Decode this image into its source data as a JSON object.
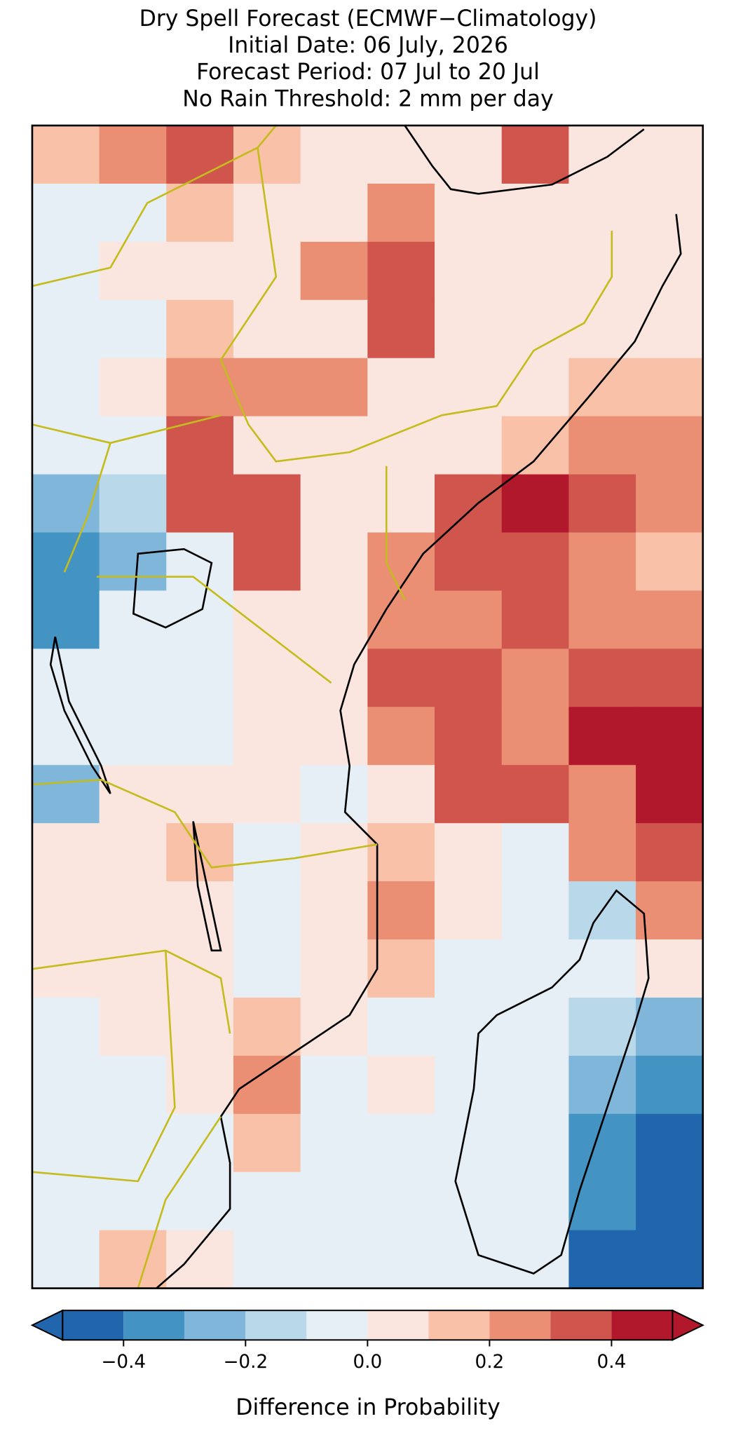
{
  "map": {
    "title": [
      "Dry Spell Forecast (ECMWF−Climatology)",
      "Initial Date: 06 July, 2026",
      "Forecast Period: 07 Jul to 20 Jul",
      "No Rain Threshold: 2 mm per day"
    ],
    "grid": [
      [
        0.1,
        0.2,
        0.3,
        0.1,
        0.05,
        0.05,
        0.05,
        0.3,
        0.05,
        0.05
      ],
      [
        -0.1,
        -0.1,
        0.1,
        0.05,
        0.05,
        0.2,
        0.05,
        0.05,
        0.05,
        0.05
      ],
      [
        -0.05,
        0.05,
        0.05,
        0.05,
        0.2,
        0.3,
        0.05,
        0.05,
        0.05,
        0.05
      ],
      [
        -0.05,
        -0.05,
        0.1,
        0.05,
        0.05,
        0.3,
        0.05,
        0.05,
        0.05,
        0.05
      ],
      [
        -0.05,
        0.05,
        0.2,
        0.2,
        0.25,
        0.05,
        0.05,
        0.05,
        0.1,
        0.15
      ],
      [
        -0.05,
        -0.1,
        0.35,
        0.05,
        0.05,
        0.05,
        0.05,
        0.15,
        0.25,
        0.2
      ],
      [
        -0.3,
        -0.2,
        0.35,
        0.3,
        0.05,
        0.05,
        0.3,
        0.4,
        0.3,
        0.2
      ],
      [
        -0.4,
        -0.3,
        -0.1,
        0.3,
        0.05,
        0.2,
        0.35,
        0.3,
        0.25,
        0.15
      ],
      [
        -0.4,
        -0.1,
        -0.05,
        0.05,
        0.05,
        0.25,
        0.2,
        0.3,
        0.25,
        0.2
      ],
      [
        -0.05,
        -0.05,
        -0.05,
        0.05,
        0.05,
        0.3,
        0.3,
        0.25,
        0.3,
        0.3
      ],
      [
        -0.05,
        -0.05,
        -0.05,
        0.05,
        0.05,
        0.2,
        0.35,
        0.2,
        0.4,
        0.4
      ],
      [
        -0.3,
        0.05,
        0.05,
        0.05,
        -0.05,
        0.05,
        0.3,
        0.3,
        0.25,
        0.4
      ],
      [
        0.05,
        0.05,
        0.1,
        -0.05,
        0.05,
        0.1,
        0.05,
        -0.1,
        0.2,
        0.35
      ],
      [
        0.05,
        0.05,
        0.05,
        -0.05,
        0.05,
        0.2,
        0.05,
        -0.1,
        -0.2,
        0.2
      ],
      [
        0.05,
        0.05,
        0.05,
        -0.05,
        0.05,
        0.1,
        -0.05,
        -0.05,
        -0.1,
        0.05
      ],
      [
        -0.05,
        0.05,
        0.05,
        0.15,
        0.05,
        -0.05,
        -0.05,
        -0.05,
        -0.2,
        -0.3
      ],
      [
        -0.05,
        -0.05,
        0.05,
        0.2,
        -0.05,
        0.05,
        -0.05,
        -0.1,
        -0.3,
        -0.4
      ],
      [
        -0.05,
        -0.05,
        -0.05,
        0.1,
        -0.05,
        -0.05,
        -0.05,
        -0.05,
        -0.4,
        -0.45
      ],
      [
        -0.05,
        -0.05,
        -0.05,
        -0.05,
        -0.05,
        -0.05,
        -0.05,
        -0.1,
        -0.4,
        -0.45
      ],
      [
        -0.05,
        0.1,
        0.05,
        -0.05,
        -0.05,
        -0.05,
        -0.05,
        -0.05,
        -0.45,
        -0.45
      ]
    ],
    "colorbar": {
      "label": "Difference in Probability",
      "boundaries": [
        -0.5,
        -0.4,
        -0.3,
        -0.2,
        -0.1,
        0,
        0.1,
        0.2,
        0.3,
        0.4,
        0.5
      ],
      "colors": [
        "#2166ac",
        "#4393c3",
        "#7fb6d9",
        "#b9d8ea",
        "#e6eff5",
        "#fbe6df",
        "#f8c1a8",
        "#ea8e74",
        "#d0554d",
        "#b2182b"
      ],
      "ticks": [
        {
          "value": -0.4,
          "label": "−0.4"
        },
        {
          "value": -0.2,
          "label": "−0.2"
        },
        {
          "value": 0,
          "label": "0.0"
        },
        0.2,
        0.4
      ]
    }
  }
}
